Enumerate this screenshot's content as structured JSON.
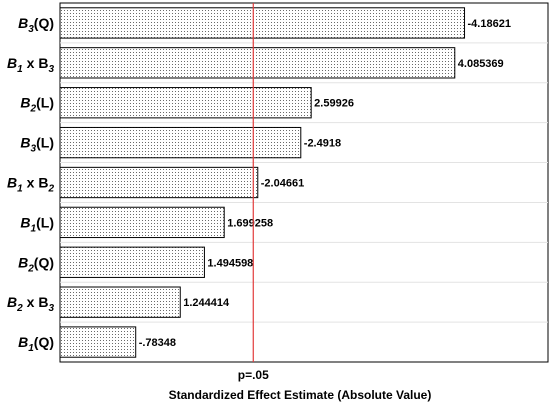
{
  "chart_data": {
    "type": "bar",
    "orientation": "horizontal",
    "title": "",
    "xlabel": "Standardized Effect Estimate (Absolute Value)",
    "ylabel": "",
    "reference_line": {
      "value": 2.0,
      "label": "p=.05",
      "color": "#e23b3b"
    },
    "grid": true,
    "bar_fill": "dotted-white",
    "categories": [
      {
        "base": "B",
        "sub": "3",
        "mid": "",
        "base2": "",
        "sub2": "",
        "suffix": "(Q)"
      },
      {
        "base": "B",
        "sub": "1",
        "mid": " x ",
        "base2": "B",
        "sub2": "3",
        "suffix": ""
      },
      {
        "base": "B",
        "sub": "2",
        "mid": "",
        "base2": "",
        "sub2": "",
        "suffix": "(L)"
      },
      {
        "base": "B",
        "sub": "3",
        "mid": "",
        "base2": "",
        "sub2": "",
        "suffix": "(L)"
      },
      {
        "base": "B",
        "sub": "1",
        "mid": " x ",
        "base2": "B",
        "sub2": "2",
        "suffix": ""
      },
      {
        "base": "B",
        "sub": "1",
        "mid": "",
        "base2": "",
        "sub2": "",
        "suffix": "(L)"
      },
      {
        "base": "B",
        "sub": "2",
        "mid": "",
        "base2": "",
        "sub2": "",
        "suffix": "(Q)"
      },
      {
        "base": "B",
        "sub": "2",
        "mid": " x ",
        "base2": "B",
        "sub2": "3",
        "suffix": ""
      },
      {
        "base": "B",
        "sub": "1",
        "mid": "",
        "base2": "",
        "sub2": "",
        "suffix": "(Q)"
      }
    ],
    "values": [
      4.18621,
      4.085369,
      2.59926,
      2.4918,
      2.04661,
      1.699258,
      1.494598,
      1.244414,
      0.78348
    ],
    "value_labels": [
      "-4.18621",
      "4.085369",
      "2.59926",
      "-2.4918",
      "-2.04661",
      "1.699258",
      "1.494598",
      "1.244414",
      "-.78348"
    ],
    "xlim": [
      0,
      5.05
    ]
  }
}
